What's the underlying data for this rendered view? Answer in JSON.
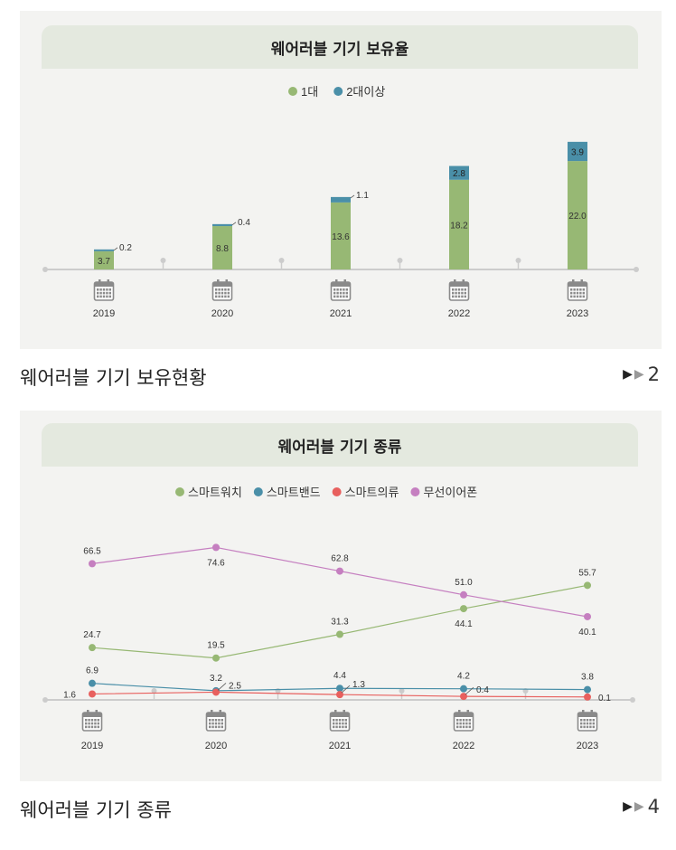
{
  "charts": [
    {
      "title": "웨어러블 기기 보유율",
      "caption": "웨어러블 기기 보유현황",
      "page_ref": "2"
    },
    {
      "title": "웨어러블 기기 종류",
      "caption": "웨어러블 기기 종류",
      "page_ref": "4"
    }
  ],
  "colors": {
    "one_device": "#97b874",
    "two_plus": "#4a8fa8",
    "smartwatch": "#97b874",
    "smartband": "#4a8fa8",
    "smartclothes": "#e8605e",
    "earphone": "#c57fc0",
    "axis": "#cccccc",
    "panel": "#f3f3f1",
    "header": "#e4e9df"
  },
  "chart_data": [
    {
      "type": "bar",
      "stacked": true,
      "title": "웨어러블 기기 보유율",
      "categories": [
        "2019",
        "2020",
        "2021",
        "2022",
        "2023"
      ],
      "series": [
        {
          "name": "1대",
          "values": [
            3.7,
            8.8,
            13.6,
            18.2,
            22.0
          ],
          "labels": [
            "3.7",
            "8.8",
            "13.6",
            "18.2",
            "22.0"
          ]
        },
        {
          "name": "2대이상",
          "values": [
            0.2,
            0.4,
            1.1,
            2.8,
            3.9
          ],
          "labels": [
            "0.2",
            "0.4",
            "1.1",
            "2.8",
            "3.9"
          ]
        }
      ],
      "ylim": [
        0,
        26
      ],
      "legend": "top-center"
    },
    {
      "type": "line",
      "title": "웨어러블 기기 종류",
      "categories": [
        "2019",
        "2020",
        "2021",
        "2022",
        "2023"
      ],
      "series": [
        {
          "name": "스마트워치",
          "values": [
            24.7,
            19.5,
            31.3,
            44.1,
            55.7
          ],
          "labels": [
            "24.7",
            "19.5",
            "31.3",
            "44.1",
            "55.7"
          ]
        },
        {
          "name": "스마트밴드",
          "values": [
            6.9,
            3.2,
            4.4,
            4.2,
            3.8
          ],
          "labels": [
            "6.9",
            "3.2",
            "4.4",
            "4.2",
            "3.8"
          ]
        },
        {
          "name": "스마트의류",
          "values": [
            1.6,
            2.5,
            1.3,
            0.4,
            0.1
          ],
          "labels": [
            "1.6",
            "2.5",
            "1.3",
            "0.4",
            "0.1"
          ]
        },
        {
          "name": "무선이어폰",
          "values": [
            66.5,
            74.6,
            62.8,
            51.0,
            40.1
          ],
          "labels": [
            "66.5",
            "74.6",
            "62.8",
            "51.0",
            "40.1"
          ]
        }
      ],
      "ylim": [
        0,
        80
      ],
      "legend": "top-center"
    }
  ]
}
